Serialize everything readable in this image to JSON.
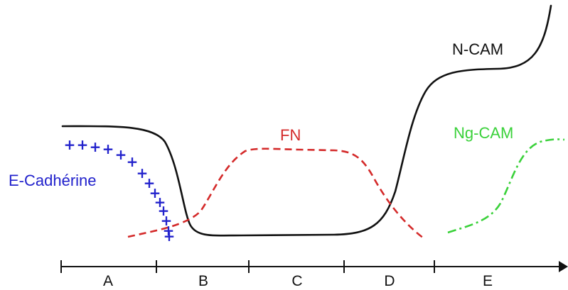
{
  "labels": {
    "ncam": "N-CAM",
    "fn": "FN",
    "ngcam": "Ng-CAM",
    "ecad": "E-Cadhérine"
  },
  "stages": [
    "A",
    "B",
    "C",
    "D",
    "E"
  ],
  "colors": {
    "ncam": "#111111",
    "fn": "#d42a2a",
    "ngcam": "#3ad13a",
    "ecad": "#2222cc",
    "axis": "#111111"
  },
  "ecad_marker": "+"
}
